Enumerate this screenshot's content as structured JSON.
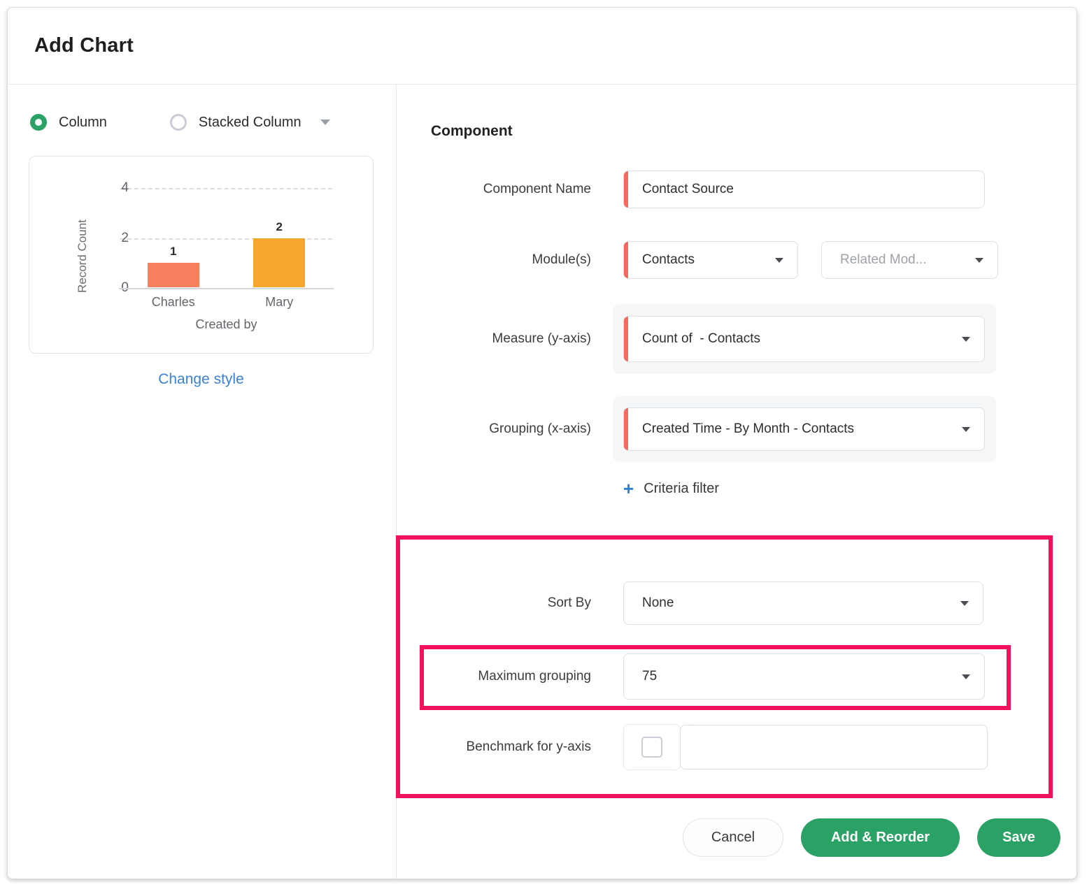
{
  "window": {
    "title": "Add Chart"
  },
  "chart_style": {
    "options": [
      {
        "label": "Column",
        "selected": true
      },
      {
        "label": "Stacked Column",
        "selected": false
      }
    ],
    "change_style": "Change style"
  },
  "chart_data": {
    "type": "bar",
    "categories": [
      "Charles",
      "Mary"
    ],
    "values": [
      1,
      2
    ],
    "value_labels": [
      "1",
      "2"
    ],
    "bar_colors": [
      "#f8805f",
      "#f6a62d"
    ],
    "xlabel": "Created by",
    "ylabel": "Record Count",
    "yticks": [
      0,
      2,
      4
    ],
    "ylim": [
      0,
      4
    ],
    "grid": "dashed-horizontal",
    "legend": "none"
  },
  "form": {
    "section_title": "Component",
    "component_name": {
      "label": "Component Name",
      "value": "Contact Source"
    },
    "modules": {
      "label": "Module(s)",
      "value": "Contacts",
      "related_value": "Related Mod..."
    },
    "measure": {
      "label": "Measure (y-axis)",
      "value": "Count of  - Contacts"
    },
    "grouping": {
      "label": "Grouping (x-axis)",
      "value": "Created Time - By Month - Contacts"
    },
    "criteria_filter": {
      "plus": "+",
      "label": "Criteria filter"
    },
    "sort_by": {
      "label": "Sort By",
      "value": "None"
    },
    "max_grouping": {
      "label": "Maximum grouping",
      "value": "75"
    },
    "benchmark": {
      "label": "Benchmark for y-axis",
      "value": "",
      "checked": false
    }
  },
  "footer": {
    "cancel": "Cancel",
    "add_reorder": "Add & Reorder",
    "save": "Save"
  },
  "colors": {
    "accent_green": "#2aa266",
    "highlight_pink": "#f2115c",
    "required_red": "#f5695f",
    "link_blue": "#3b82d6"
  }
}
